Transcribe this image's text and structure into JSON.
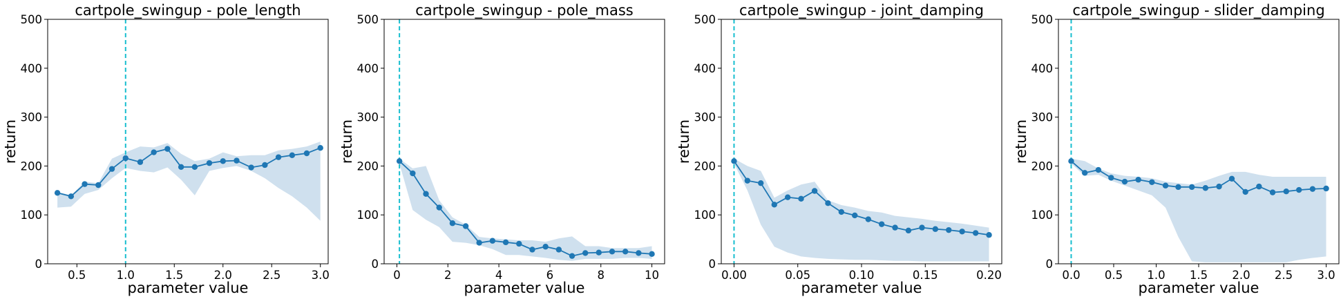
{
  "chart_data": [
    {
      "type": "line",
      "title": "cartpole_swingup - pole_length",
      "xlabel": "parameter value",
      "ylabel": "return",
      "xlim": [
        0.2,
        3.08
      ],
      "ylim": [
        0,
        500
      ],
      "xticks": [
        0.5,
        1.0,
        1.5,
        2.0,
        2.5,
        3.0
      ],
      "xtick_labels": [
        "0.5",
        "1.0",
        "1.5",
        "2.0",
        "2.5",
        "3.0"
      ],
      "yticks": [
        0,
        100,
        200,
        300,
        400,
        500
      ],
      "ytick_labels": [
        "0",
        "100",
        "200",
        "300",
        "400",
        "500"
      ],
      "reference_line_x": 1.0,
      "series": [
        {
          "x": [
            0.3,
            0.44,
            0.58,
            0.72,
            0.86,
            1.0,
            1.15,
            1.29,
            1.43,
            1.57,
            1.71,
            1.86,
            2.0,
            2.14,
            2.29,
            2.43,
            2.57,
            2.71,
            2.86,
            3.0
          ],
          "y": [
            145,
            138,
            163,
            161,
            194,
            216,
            208,
            228,
            235,
            198,
            198,
            206,
            210,
            211,
            197,
            202,
            218,
            222,
            226,
            237
          ],
          "lower": [
            115,
            117,
            143,
            151,
            175,
            196,
            190,
            187,
            197,
            172,
            140,
            190,
            196,
            200,
            190,
            175,
            155,
            138,
            115,
            88
          ],
          "upper": [
            147,
            140,
            168,
            165,
            215,
            228,
            240,
            238,
            247,
            225,
            210,
            215,
            228,
            220,
            222,
            222,
            232,
            235,
            240,
            250
          ]
        }
      ],
      "colors": {
        "line": "#1f77b4",
        "band": "#cfe0ee",
        "ref": "#17becf"
      }
    },
    {
      "type": "line",
      "title": "cartpole_swingup - pole_mass",
      "xlabel": "parameter value",
      "ylabel": "return",
      "xlim": [
        -0.5,
        10.5
      ],
      "ylim": [
        0,
        500
      ],
      "xticks": [
        0,
        2,
        4,
        6,
        8,
        10
      ],
      "xtick_labels": [
        "0",
        "2",
        "4",
        "6",
        "8",
        "10"
      ],
      "yticks": [
        0,
        100,
        200,
        300,
        400,
        500
      ],
      "ytick_labels": [
        "0",
        "100",
        "200",
        "300",
        "400",
        "500"
      ],
      "reference_line_x": 0.1,
      "series": [
        {
          "x": [
            0.1,
            0.62,
            1.14,
            1.66,
            2.18,
            2.7,
            3.23,
            3.75,
            4.27,
            4.79,
            5.31,
            5.83,
            6.35,
            6.87,
            7.39,
            7.92,
            8.44,
            8.96,
            9.48,
            10.0
          ],
          "y": [
            210,
            185,
            143,
            115,
            83,
            77,
            43,
            47,
            44,
            41,
            29,
            35,
            29,
            16,
            22,
            23,
            25,
            25,
            22,
            20
          ],
          "lower": [
            205,
            110,
            90,
            75,
            45,
            43,
            38,
            30,
            18,
            18,
            15,
            12,
            8,
            6,
            10,
            10,
            10,
            12,
            12,
            10
          ],
          "upper": [
            215,
            195,
            200,
            130,
            95,
            80,
            55,
            52,
            50,
            48,
            48,
            45,
            52,
            56,
            36,
            36,
            32,
            32,
            32,
            36
          ]
        }
      ],
      "colors": {
        "line": "#1f77b4",
        "band": "#cfe0ee",
        "ref": "#17becf"
      }
    },
    {
      "type": "line",
      "title": "cartpole_swingup - joint_damping",
      "xlabel": "parameter value",
      "ylabel": "return",
      "xlim": [
        -0.01,
        0.21
      ],
      "ylim": [
        0,
        500
      ],
      "xticks": [
        0.0,
        0.05,
        0.1,
        0.15,
        0.2
      ],
      "xtick_labels": [
        "0.00",
        "0.05",
        "0.10",
        "0.15",
        "0.20"
      ],
      "yticks": [
        0,
        100,
        200,
        300,
        400,
        500
      ],
      "ytick_labels": [
        "0",
        "100",
        "200",
        "300",
        "400",
        "500"
      ],
      "reference_line_x": 0.0,
      "series": [
        {
          "x": [
            0.0,
            0.0105,
            0.021,
            0.0316,
            0.0421,
            0.0526,
            0.0632,
            0.0737,
            0.0842,
            0.0947,
            0.1053,
            0.1158,
            0.1263,
            0.1368,
            0.1474,
            0.1579,
            0.1684,
            0.1789,
            0.1895,
            0.2
          ],
          "y": [
            210,
            170,
            165,
            121,
            136,
            133,
            149,
            124,
            106,
            99,
            91,
            81,
            74,
            68,
            74,
            71,
            69,
            66,
            63,
            59
          ],
          "lower": [
            205,
            150,
            80,
            35,
            23,
            15,
            12,
            10,
            9,
            8,
            8,
            7,
            6,
            6,
            5,
            5,
            5,
            5,
            5,
            5
          ],
          "upper": [
            215,
            200,
            190,
            135,
            150,
            162,
            168,
            130,
            120,
            115,
            108,
            105,
            98,
            95,
            92,
            88,
            85,
            82,
            78,
            74
          ]
        }
      ],
      "colors": {
        "line": "#1f77b4",
        "band": "#cfe0ee",
        "ref": "#17becf"
      }
    },
    {
      "type": "line",
      "title": "cartpole_swingup - slider_damping",
      "xlabel": "parameter value",
      "ylabel": "return",
      "xlim": [
        -0.15,
        3.15
      ],
      "ylim": [
        0,
        500
      ],
      "xticks": [
        0.0,
        0.5,
        1.0,
        1.5,
        2.0,
        2.5,
        3.0
      ],
      "xtick_labels": [
        "0.0",
        "0.5",
        "1.0",
        "1.5",
        "2.0",
        "2.5",
        "3.0"
      ],
      "yticks": [
        0,
        100,
        200,
        300,
        400,
        500
      ],
      "ytick_labels": [
        "0",
        "100",
        "200",
        "300",
        "400",
        "500"
      ],
      "reference_line_x": 0.0,
      "series": [
        {
          "x": [
            0.0,
            0.16,
            0.32,
            0.47,
            0.63,
            0.79,
            0.95,
            1.11,
            1.26,
            1.42,
            1.58,
            1.74,
            1.89,
            2.05,
            2.21,
            2.37,
            2.53,
            2.68,
            2.84,
            3.0
          ],
          "y": [
            210,
            186,
            192,
            176,
            168,
            172,
            167,
            160,
            157,
            157,
            155,
            158,
            174,
            147,
            158,
            146,
            148,
            151,
            153,
            154
          ],
          "lower": [
            205,
            180,
            182,
            170,
            160,
            150,
            140,
            115,
            55,
            5,
            3,
            3,
            3,
            3,
            3,
            3,
            3,
            8,
            12,
            15
          ],
          "upper": [
            215,
            210,
            195,
            185,
            180,
            178,
            175,
            168,
            165,
            162,
            170,
            180,
            188,
            188,
            182,
            178,
            178,
            178,
            178,
            178
          ]
        }
      ],
      "colors": {
        "line": "#1f77b4",
        "band": "#cfe0ee",
        "ref": "#17becf"
      }
    }
  ]
}
